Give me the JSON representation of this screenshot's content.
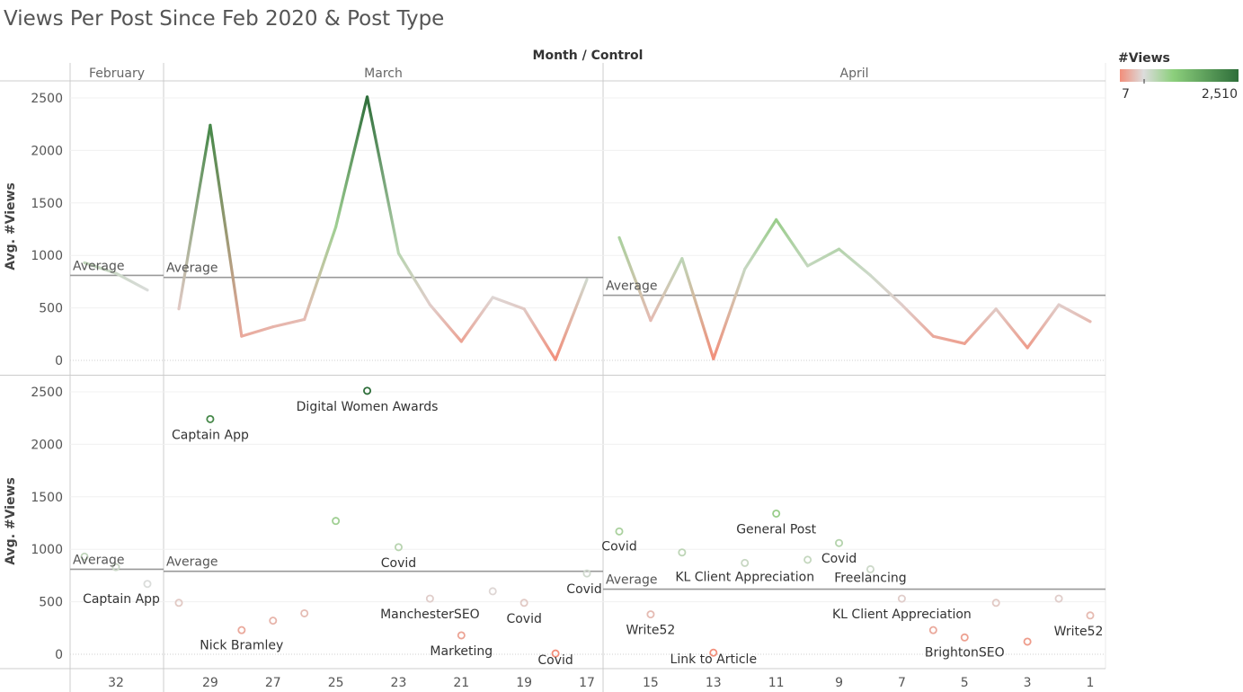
{
  "title": "Views Per Post Since Feb 2020 & Post Type",
  "header_title": "Month / Control",
  "y_axis_label": "Avg. #Views",
  "average_label": "Average",
  "legend": {
    "title": "#Views",
    "min_label": "7",
    "max_label": "2,510",
    "min_value": 7,
    "max_value": 2510,
    "low_color": "#f28e7a",
    "mid_color": "#dcdcdc",
    "high_color": "#2e6e3a"
  },
  "colors": {
    "low": "#f28e7a",
    "mid": "#dcdcdc",
    "high": "#2e6e3a",
    "avg_line": "#999999"
  },
  "chart_data": {
    "type": "line",
    "ylim": [
      -100,
      2650
    ],
    "yticks": [
      0,
      500,
      1000,
      1500,
      2000,
      2500
    ],
    "x_direction": "descending",
    "months": [
      {
        "name": "February",
        "average": 810,
        "ticks": [
          "32"
        ],
        "points": [
          {
            "x": 33,
            "y": 930,
            "label": ""
          },
          {
            "x": 32,
            "y": 830,
            "label": "Captain App"
          },
          {
            "x": 31,
            "y": 670,
            "label": ""
          }
        ]
      },
      {
        "name": "March",
        "average": 790,
        "ticks": [
          "29",
          "27",
          "25",
          "23",
          "21",
          "19",
          "17"
        ],
        "points": [
          {
            "x": 30,
            "y": 490,
            "label": ""
          },
          {
            "x": 29,
            "y": 2240,
            "label": "Captain App"
          },
          {
            "x": 28,
            "y": 230,
            "label": ""
          },
          {
            "x": 27,
            "y": 320,
            "label": "Nick Bramley"
          },
          {
            "x": 26,
            "y": 390,
            "label": ""
          },
          {
            "x": 25,
            "y": 1270,
            "label": ""
          },
          {
            "x": 24,
            "y": 2510,
            "label": "Digital Women Awards"
          },
          {
            "x": 23,
            "y": 1020,
            "label": "Covid"
          },
          {
            "x": 22,
            "y": 530,
            "label": "ManchesterSEO"
          },
          {
            "x": 21,
            "y": 180,
            "label": "Marketing"
          },
          {
            "x": 20,
            "y": 600,
            "label": ""
          },
          {
            "x": 19,
            "y": 490,
            "label": "Covid"
          },
          {
            "x": 18,
            "y": 7,
            "label": "Covid"
          },
          {
            "x": 17,
            "y": 770,
            "label": "Covid"
          }
        ]
      },
      {
        "name": "April",
        "average": 620,
        "ticks": [
          "15",
          "13",
          "11",
          "9",
          "7",
          "5",
          "3",
          "1"
        ],
        "points": [
          {
            "x": 16,
            "y": 1170,
            "label": "Covid"
          },
          {
            "x": 15,
            "y": 380,
            "label": "Write52"
          },
          {
            "x": 14,
            "y": 970,
            "label": ""
          },
          {
            "x": 13,
            "y": 15,
            "label": "Link to Article"
          },
          {
            "x": 12,
            "y": 870,
            "label": "KL Client Appreciation"
          },
          {
            "x": 11,
            "y": 1340,
            "label": "General Post"
          },
          {
            "x": 10,
            "y": 900,
            "label": ""
          },
          {
            "x": 9,
            "y": 1060,
            "label": "Covid"
          },
          {
            "x": 8,
            "y": 810,
            "label": "Freelancing"
          },
          {
            "x": 7,
            "y": 530,
            "label": "KL Client Appreciation"
          },
          {
            "x": 6,
            "y": 230,
            "label": ""
          },
          {
            "x": 5,
            "y": 160,
            "label": "BrightonSEO"
          },
          {
            "x": 4,
            "y": 490,
            "label": ""
          },
          {
            "x": 3,
            "y": 120,
            "label": ""
          },
          {
            "x": 2,
            "y": 530,
            "label": ""
          },
          {
            "x": 1,
            "y": 370,
            "label": "Write52"
          }
        ]
      }
    ]
  }
}
